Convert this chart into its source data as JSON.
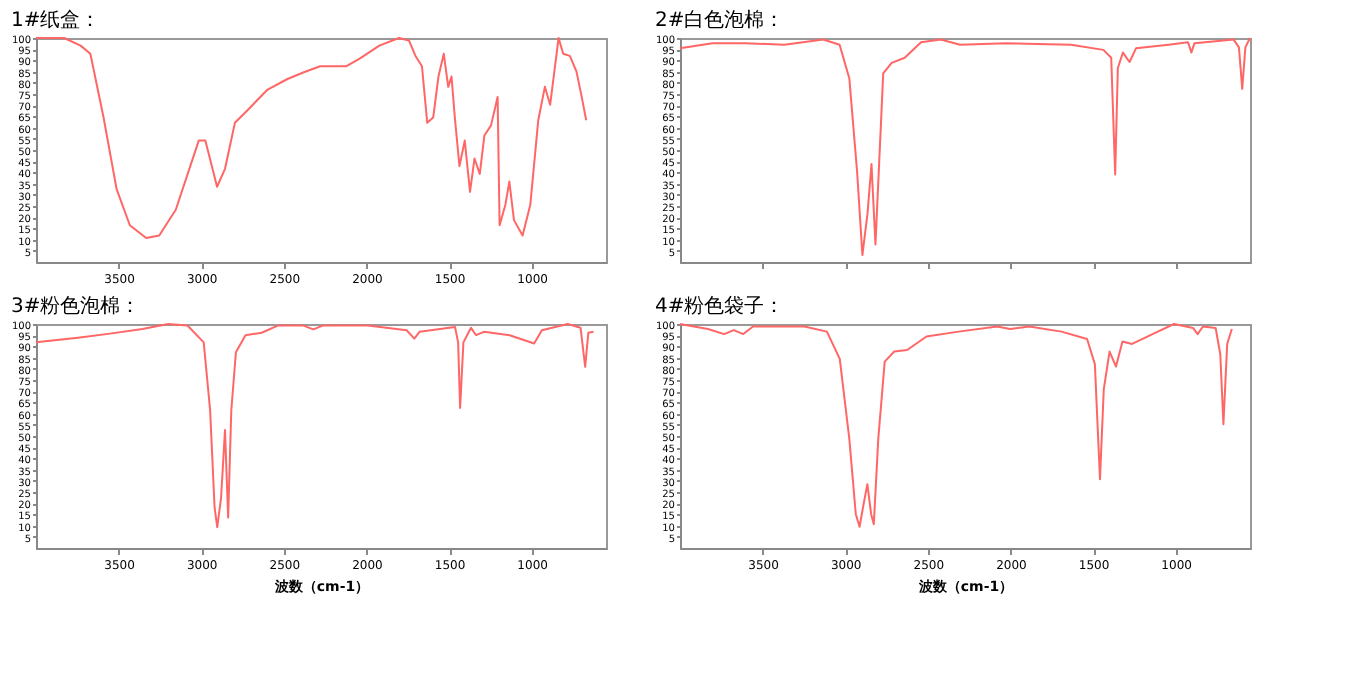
{
  "chart_data": [
    {
      "type": "line",
      "title": "1#纸盒：",
      "x": [
        4000,
        3830,
        3730,
        3671,
        3591,
        3512,
        3432,
        3333,
        3254,
        3154,
        3015,
        2975,
        2904,
        2856,
        2796,
        2717,
        2598,
        2478,
        2379,
        2280,
        2121,
        2041,
        1922,
        1803,
        1743,
        1703,
        1664,
        1632,
        1596,
        1564,
        1532,
        1505,
        1485,
        1465,
        1437,
        1405,
        1373,
        1346,
        1314,
        1286,
        1246,
        1206,
        1194,
        1159,
        1135,
        1107,
        1055,
        1008,
        960,
        920,
        888,
        837,
        809,
        769,
        729,
        697,
        670
      ],
      "series": [
        {
          "color": "#ff6666",
          "values": [
            100,
            100,
            96.6,
            93,
            64.5,
            32.5,
            16.4,
            10.7,
            11.8,
            23.3,
            54.2,
            54.2,
            33.6,
            41.6,
            62.2,
            68,
            77,
            81.7,
            84.7,
            87.4,
            87.4,
            90.8,
            96.6,
            100,
            98.9,
            92,
            87.4,
            62.2,
            64.5,
            82.8,
            93,
            78.2,
            82.8,
            64.5,
            42.8,
            54.2,
            31.3,
            46.2,
            39.3,
            56.5,
            61,
            73.7,
            16.4,
            25.6,
            35.9,
            18.7,
            11.8,
            25.6,
            63.3,
            78.2,
            70.2,
            100,
            93,
            92,
            85.1,
            73.7,
            63.3
          ]
        }
      ],
      "xlim": [
        4000,
        550
      ],
      "xticks": [
        3500,
        3000,
        2500,
        2000,
        1500,
        1000
      ],
      "ylim": [
        0,
        100
      ],
      "yticks": [
        5,
        10,
        15,
        20,
        25,
        30,
        35,
        40,
        45,
        50,
        55,
        60,
        65,
        70,
        75,
        80,
        85,
        90,
        95,
        100
      ],
      "grid": false,
      "line_style": "solid"
    },
    {
      "type": "line",
      "title": "2#白色泡棉：",
      "x": [
        4000,
        3803,
        3606,
        3369,
        3133,
        3034,
        2975,
        2928,
        2896,
        2865,
        2841,
        2817,
        2797,
        2770,
        2719,
        2640,
        2541,
        2423,
        2304,
        2029,
        1634,
        1437,
        1390,
        1366,
        1350,
        1319,
        1279,
        1240,
        1043,
        925,
        905,
        886,
        649,
        617,
        597,
        578,
        550
      ],
      "series": [
        {
          "color": "#ff6666",
          "values": [
            95.4,
            97.7,
            97.7,
            97,
            99.3,
            97,
            81.9,
            40.2,
            3.1,
            21.7,
            43.7,
            7.8,
            40.2,
            84.2,
            88.9,
            91.2,
            98.1,
            99.3,
            97,
            97.7,
            97,
            94.7,
            91.2,
            39.1,
            86.6,
            93.5,
            89.3,
            95.4,
            97,
            98.1,
            93.5,
            97.7,
            99.3,
            95.8,
            77.3,
            95.8,
            100
          ]
        }
      ],
      "xlim": [
        4000,
        550
      ],
      "xticks": [
        3500,
        3000,
        2500,
        2000,
        1500,
        1000
      ],
      "ylim": [
        0,
        100
      ],
      "yticks": [
        5,
        10,
        15,
        20,
        25,
        30,
        35,
        40,
        45,
        50,
        55,
        60,
        65,
        70,
        75,
        80,
        85,
        90,
        95,
        100
      ],
      "grid": false,
      "line_style": "solid",
      "tick_labels": "y"
    },
    {
      "type": "line",
      "title": "3#粉色泡棉：",
      "xlabel": "波数（cm-1）",
      "x": [
        4000,
        3746,
        3551,
        3356,
        3200,
        3083,
        2985,
        2946,
        2919,
        2903,
        2880,
        2856,
        2837,
        2818,
        2790,
        2732,
        2634,
        2537,
        2381,
        2322,
        2264,
        1991,
        1757,
        1710,
        1679,
        1464,
        1445,
        1433,
        1413,
        1367,
        1336,
        1289,
        1133,
        985,
        938,
        782,
        704,
        676,
        657,
        626
      ],
      "series": [
        {
          "color": "#ff6666",
          "values": [
            91.8,
            93.9,
            95.7,
            97.8,
            100,
            99.3,
            91.8,
            61.4,
            18,
            9.3,
            22.3,
            52.7,
            13.6,
            61.4,
            87.4,
            95,
            96.1,
            99.3,
            99.3,
            97.6,
            99.3,
            99.3,
            97.2,
            93.5,
            96.5,
            98.7,
            91.8,
            62.5,
            91.8,
            98.3,
            95,
            96.5,
            95,
            91.3,
            97.2,
            100,
            98.3,
            80.9,
            96.1,
            96.5
          ]
        }
      ],
      "xlim": [
        4000,
        550
      ],
      "xticks": [
        3500,
        3000,
        2500,
        2000,
        1500,
        1000
      ],
      "ylim": [
        0,
        100
      ],
      "yticks": [
        5,
        10,
        15,
        20,
        25,
        30,
        35,
        40,
        45,
        50,
        55,
        60,
        65,
        70,
        75,
        80,
        85,
        90,
        95,
        100
      ],
      "grid": false,
      "line_style": "solid"
    },
    {
      "type": "line",
      "title": "4#粉色袋子：",
      "xlabel": "波数（cm-1）",
      "x": [
        4000,
        3831,
        3733,
        3675,
        3617,
        3558,
        3247,
        3111,
        3033,
        2975,
        2936,
        2913,
        2889,
        2866,
        2843,
        2827,
        2800,
        2761,
        2703,
        2625,
        2508,
        2314,
        2080,
        2002,
        1886,
        1691,
        1536,
        1489,
        1458,
        1435,
        1400,
        1361,
        1322,
        1264,
        1108,
        1010,
        894,
        867,
        835,
        758,
        730,
        711,
        688,
        660
      ],
      "series": [
        {
          "color": "#ff6666",
          "values": [
            100,
            97.8,
            95.5,
            97.3,
            95.5,
            98.9,
            98.9,
            96.6,
            84.4,
            48.6,
            15.1,
            9.5,
            19.5,
            28.5,
            15.1,
            10.6,
            48.6,
            83.2,
            87.7,
            88.4,
            94.4,
            96.6,
            98.9,
            97.8,
            98.9,
            96.6,
            93.3,
            82.1,
            30.7,
            70.9,
            87.7,
            81,
            92.2,
            91.1,
            96.6,
            100,
            98.2,
            95.5,
            98.9,
            98.2,
            86.6,
            55.3,
            91.1,
            97.8
          ]
        }
      ],
      "xlim": [
        4000,
        550
      ],
      "xticks": [
        3500,
        3000,
        2500,
        2000,
        1500,
        1000
      ],
      "ylim": [
        0,
        100
      ],
      "yticks": [
        5,
        10,
        15,
        20,
        25,
        30,
        35,
        40,
        45,
        50,
        55,
        60,
        65,
        70,
        75,
        80,
        85,
        90,
        95,
        100
      ],
      "grid": false,
      "line_style": "solid"
    }
  ]
}
